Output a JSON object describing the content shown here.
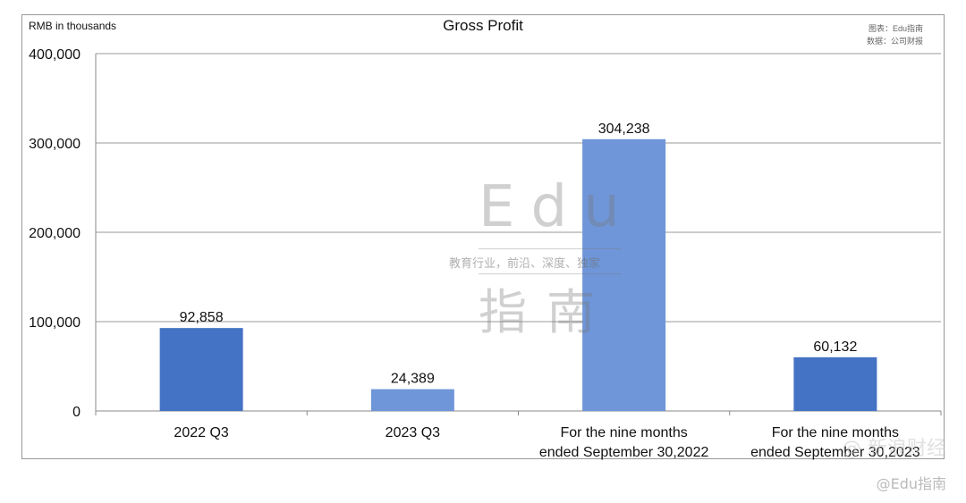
{
  "header": {
    "unit_label": "RMB in thousands",
    "title": "Gross Profit",
    "source_line1": "图表：Edu指南",
    "source_line2": "数据：公司财报"
  },
  "watermark": {
    "brand": "Edu",
    "tagline": "教育行业，前沿、深度、独家",
    "brand_cn": "指南",
    "weibo": "@Edu指南",
    "weibo_overlay": "@ 新浪财经"
  },
  "chart_data": {
    "type": "bar",
    "title": "Gross Profit",
    "ylabel": "RMB in thousands",
    "categories": [
      [
        "2022 Q3"
      ],
      [
        "2023 Q3"
      ],
      [
        "For the nine months",
        "ended September 30,2022"
      ],
      [
        "For the nine months",
        "ended September 30,2023"
      ]
    ],
    "values": [
      92858,
      24389,
      304238,
      60132
    ],
    "value_labels": [
      "92,858",
      "24,389",
      "304,238",
      "60,132"
    ],
    "bar_colors": [
      "#4472c4",
      "#6f96d8",
      "#6f96d8",
      "#4472c4"
    ],
    "ylim": [
      0,
      400000
    ],
    "yticks": [
      0,
      100000,
      200000,
      300000,
      400000
    ],
    "ytick_labels": [
      "0",
      "100,000",
      "200,000",
      "300,000",
      "400,000"
    ],
    "grid": true,
    "legend": "none"
  }
}
